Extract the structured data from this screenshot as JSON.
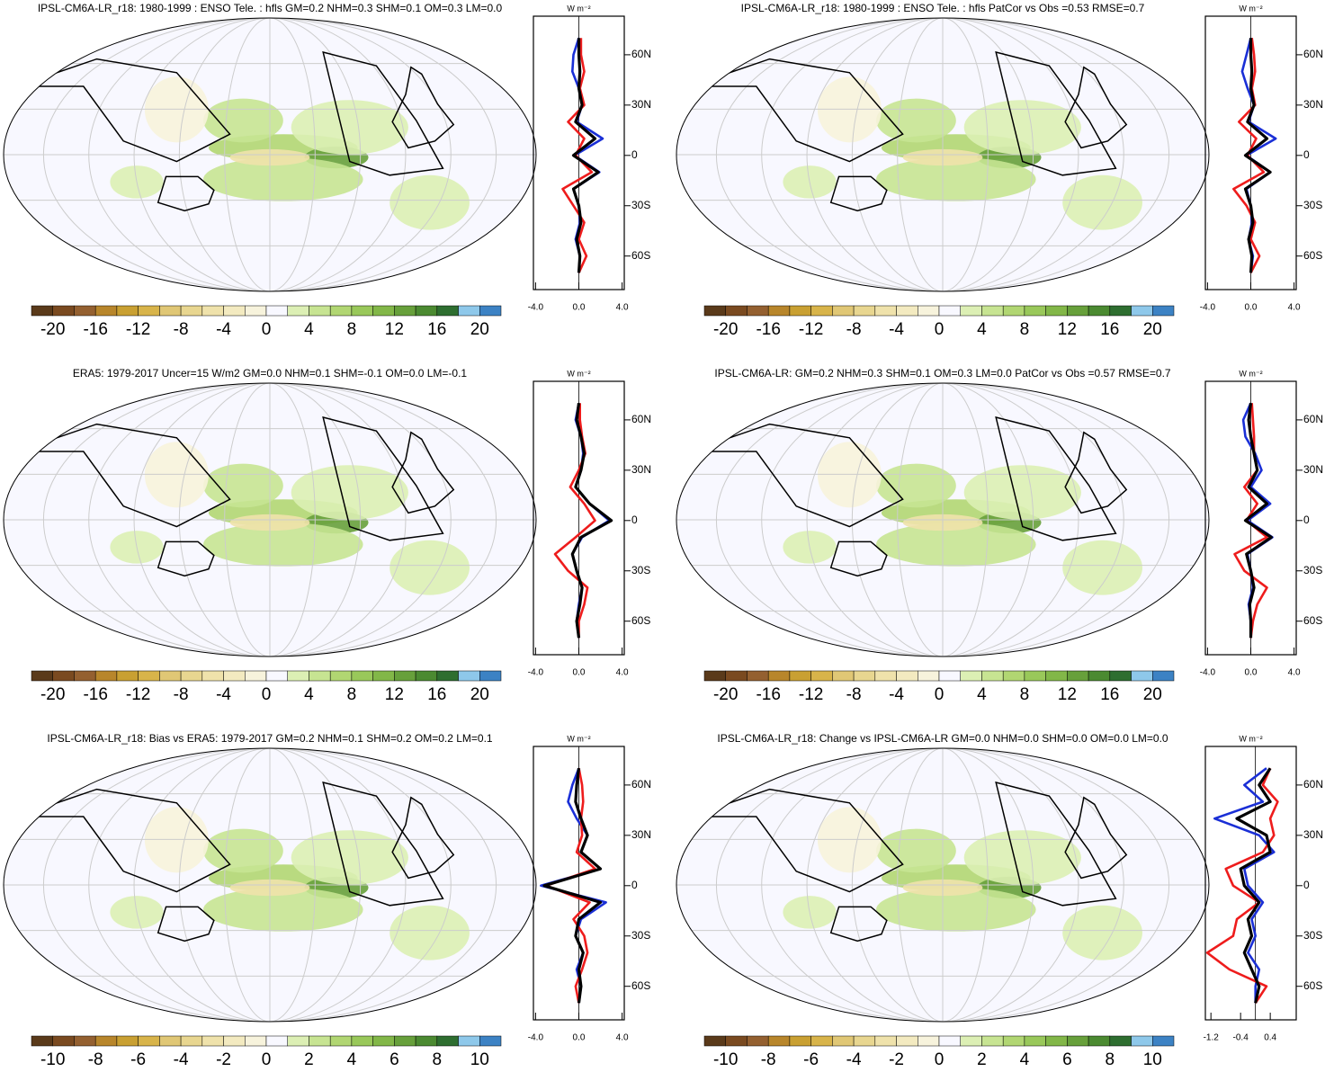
{
  "chart_data": [
    {
      "type": "map",
      "title": "IPSL-CM6A-LR_r18: 1980-1999 : ENSO Tele. : hfls GM=0.2 NHM=0.3 SHM=0.1 OM=0.3 LM=0.0",
      "colorbar": {
        "lim": [
          -22,
          22
        ],
        "ticks": [
          -20,
          -16,
          -12,
          -8,
          -4,
          0,
          4,
          8,
          12,
          16,
          20
        ],
        "colors": [
          "#5a3a1a",
          "#7a4a20",
          "#946030",
          "#b8862b",
          "#c9a032",
          "#d8b44a",
          "#e0c775",
          "#e8d690",
          "#efe2ab",
          "#f3eac0",
          "#f7f3dc",
          "#f8f8ff",
          "#dcefb4",
          "#c7e492",
          "#b1d672",
          "#99c85a",
          "#82b748",
          "#67a03b",
          "#4b8a31",
          "#2e6e30",
          "#8ec8ea",
          "#3c82c4"
        ]
      }
    },
    {
      "type": "line",
      "unit": "W m⁻²",
      "y": [
        70,
        60,
        50,
        40,
        30,
        20,
        10,
        0,
        -10,
        -20,
        -30,
        -40,
        -50,
        -60,
        -70
      ],
      "xlim": [
        -4.2,
        4.2
      ],
      "xticks": [
        {
          "value": -4,
          "label": "-4.0"
        },
        {
          "value": 0,
          "label": "0.0"
        },
        {
          "value": 4,
          "label": "4.0"
        }
      ],
      "ylim": [
        -80,
        83
      ],
      "yticks": [
        {
          "value": 60,
          "label": "60N"
        },
        {
          "value": 30,
          "label": "30N"
        },
        0,
        {
          "value": -30,
          "label": "30S"
        },
        {
          "value": -60,
          "label": "60S"
        }
      ],
      "series": [
        {
          "color": "#1a2fd6",
          "values": [
            0,
            -0.5,
            -0.6,
            0,
            0.3,
            -0.2,
            2.2,
            -0.4,
            1.9,
            -0.5,
            0,
            0.1,
            -0.3,
            0.1,
            0
          ]
        },
        {
          "color": "#ee1c1c",
          "values": [
            0.2,
            0.2,
            0.5,
            0.1,
            0.5,
            -1.0,
            0.5,
            -0.3,
            1.2,
            -1.5,
            -0.5,
            0.5,
            0,
            0.7,
            0
          ]
        },
        {
          "color": "#000000",
          "values": [
            0,
            0,
            0.1,
            0,
            0.3,
            -0.3,
            1.5,
            -0.5,
            1.8,
            -0.5,
            0,
            0.2,
            -0.2,
            0.1,
            0
          ]
        }
      ]
    },
    {
      "type": "map",
      "title": "IPSL-CM6A-LR_r18: 1980-1999 : ENSO Tele. : hfls PatCor vs Obs =0.53 RMSE=0.7",
      "colorbar": {
        "lim": [
          -22,
          22
        ],
        "ticks": [
          -20,
          -16,
          -12,
          -8,
          -4,
          0,
          4,
          8,
          12,
          16,
          20
        ],
        "colors": [
          "#5a3a1a",
          "#7a4a20",
          "#946030",
          "#b8862b",
          "#c9a032",
          "#d8b44a",
          "#e0c775",
          "#e8d690",
          "#efe2ab",
          "#f3eac0",
          "#f7f3dc",
          "#f8f8ff",
          "#dcefb4",
          "#c7e492",
          "#b1d672",
          "#99c85a",
          "#82b748",
          "#67a03b",
          "#4b8a31",
          "#2e6e30",
          "#8ec8ea",
          "#3c82c4"
        ]
      }
    },
    {
      "type": "line",
      "unit": "W m⁻²",
      "y": [
        70,
        60,
        50,
        40,
        30,
        20,
        10,
        0,
        -10,
        -20,
        -30,
        -40,
        -50,
        -60,
        -70
      ],
      "xlim": [
        -4.2,
        4.2
      ],
      "xticks": [
        {
          "value": -4,
          "label": "-4.0"
        },
        {
          "value": 0,
          "label": "0.0"
        },
        {
          "value": 4,
          "label": "4.0"
        }
      ],
      "ylim": [
        -80,
        83
      ],
      "yticks": [
        {
          "value": 60,
          "label": "60N"
        },
        {
          "value": 30,
          "label": "30N"
        },
        0,
        {
          "value": -30,
          "label": "30S"
        },
        {
          "value": -60,
          "label": "60S"
        }
      ],
      "series": [
        {
          "color": "#1a2fd6",
          "values": [
            0,
            -0.4,
            -0.8,
            -0.3,
            0.3,
            -0.2,
            2.3,
            -0.4,
            1.8,
            -0.4,
            0,
            0.1,
            -0.2,
            0.2,
            0
          ]
        },
        {
          "color": "#ee1c1c",
          "values": [
            0.1,
            0.3,
            0.4,
            0.1,
            0.4,
            -1.1,
            0.5,
            -0.3,
            1.2,
            -1.6,
            -0.4,
            0.4,
            0,
            0.8,
            0
          ]
        },
        {
          "color": "#000000",
          "values": [
            0,
            0,
            0.1,
            0,
            0.3,
            -0.3,
            1.5,
            -0.5,
            1.8,
            -0.5,
            0,
            0.2,
            -0.2,
            0.1,
            0
          ]
        }
      ]
    },
    {
      "type": "map",
      "title": "ERA5: 1979-2017 Uncer=15 W/m2 GM=0.0 NHM=0.1 SHM=-0.1 OM=0.0 LM=-0.1",
      "colorbar": {
        "lim": [
          -22,
          22
        ],
        "ticks": [
          -20,
          -16,
          -12,
          -8,
          -4,
          0,
          4,
          8,
          12,
          16,
          20
        ],
        "colors": [
          "#5a3a1a",
          "#7a4a20",
          "#946030",
          "#b8862b",
          "#c9a032",
          "#d8b44a",
          "#e0c775",
          "#e8d690",
          "#efe2ab",
          "#f3eac0",
          "#f7f3dc",
          "#f8f8ff",
          "#dcefb4",
          "#c7e492",
          "#b1d672",
          "#99c85a",
          "#82b748",
          "#67a03b",
          "#4b8a31",
          "#2e6e30",
          "#8ec8ea",
          "#3c82c4"
        ]
      }
    },
    {
      "type": "line",
      "unit": "W m⁻²",
      "y": [
        70,
        60,
        50,
        40,
        30,
        20,
        10,
        0,
        -10,
        -20,
        -30,
        -40,
        -50,
        -60,
        -70
      ],
      "xlim": [
        -4.2,
        4.2
      ],
      "xticks": [
        {
          "value": -4,
          "label": "-4.0"
        },
        {
          "value": 0,
          "label": "0.0"
        },
        {
          "value": 4,
          "label": "4.0"
        }
      ],
      "ylim": [
        -80,
        83
      ],
      "yticks": [
        {
          "value": 60,
          "label": "60N"
        },
        {
          "value": 30,
          "label": "30N"
        },
        0,
        {
          "value": -30,
          "label": "30S"
        },
        {
          "value": -60,
          "label": "60S"
        }
      ],
      "series": [
        {
          "color": "#1a2fd6",
          "values": [
            0,
            -0.3,
            0.2,
            0.4,
            0.2,
            -0.3,
            1.0,
            2.8,
            0.3,
            -0.6,
            -0.2,
            0.3,
            0,
            -0.2,
            0
          ]
        },
        {
          "color": "#ee1c1c",
          "values": [
            0.1,
            0.1,
            0.3,
            0.6,
            0,
            -0.8,
            0.5,
            1.5,
            -0.3,
            -2.2,
            -1.0,
            0.8,
            0.5,
            0,
            0
          ]
        },
        {
          "color": "#000000",
          "values": [
            0,
            -0.2,
            0.2,
            0.5,
            0.2,
            -0.3,
            1.0,
            3.0,
            0.2,
            -0.6,
            -0.2,
            0.3,
            0.1,
            -0.2,
            0
          ]
        }
      ]
    },
    {
      "type": "map",
      "title": "IPSL-CM6A-LR: GM=0.2 NHM=0.3 SHM=0.1 OM=0.3 LM=0.0 PatCor vs Obs =0.57 RMSE=0.7",
      "colorbar": {
        "lim": [
          -22,
          22
        ],
        "ticks": [
          -20,
          -16,
          -12,
          -8,
          -4,
          0,
          4,
          8,
          12,
          16,
          20
        ],
        "colors": [
          "#5a3a1a",
          "#7a4a20",
          "#946030",
          "#b8862b",
          "#c9a032",
          "#d8b44a",
          "#e0c775",
          "#e8d690",
          "#efe2ab",
          "#f3eac0",
          "#f7f3dc",
          "#f8f8ff",
          "#dcefb4",
          "#c7e492",
          "#b1d672",
          "#99c85a",
          "#82b748",
          "#67a03b",
          "#4b8a31",
          "#2e6e30",
          "#8ec8ea",
          "#3c82c4"
        ]
      }
    },
    {
      "type": "line",
      "unit": "W m⁻²",
      "y": [
        70,
        60,
        50,
        40,
        30,
        20,
        10,
        0,
        -10,
        -20,
        -30,
        -40,
        -50,
        -60,
        -70
      ],
      "xlim": [
        -4.2,
        4.2
      ],
      "xticks": [
        {
          "value": -4,
          "label": "-4.0"
        },
        {
          "value": 0,
          "label": "0.0"
        },
        {
          "value": 4,
          "label": "4.0"
        }
      ],
      "ylim": [
        -80,
        83
      ],
      "yticks": [
        {
          "value": 60,
          "label": "60N"
        },
        {
          "value": 30,
          "label": "30N"
        },
        0,
        {
          "value": -30,
          "label": "30S"
        },
        {
          "value": -60,
          "label": "60S"
        }
      ],
      "series": [
        {
          "color": "#1a2fd6",
          "values": [
            0,
            -0.7,
            -0.5,
            0.4,
            1.0,
            0,
            1.8,
            -0.3,
            2.0,
            -0.3,
            0,
            0.2,
            -0.2,
            0,
            0
          ]
        },
        {
          "color": "#ee1c1c",
          "values": [
            0.1,
            0.2,
            0.3,
            0.3,
            0.6,
            -0.6,
            0.6,
            -0.4,
            1.5,
            -1.5,
            -0.6,
            1.5,
            0.6,
            0.2,
            0
          ]
        },
        {
          "color": "#000000",
          "values": [
            0,
            -0.2,
            0,
            0.3,
            0.6,
            -0.2,
            1.5,
            -0.5,
            1.9,
            -0.4,
            0,
            0.3,
            -0.1,
            0,
            0
          ]
        }
      ]
    },
    {
      "type": "map",
      "title": "IPSL-CM6A-LR_r18: Bias vs ERA5: 1979-2017 GM=0.2 NHM=0.1 SHM=0.2 OM=0.2 LM=0.1",
      "colorbar": {
        "lim": [
          -11,
          11
        ],
        "ticks": [
          -10,
          -8,
          -6,
          -4,
          -2,
          0,
          2,
          4,
          6,
          8,
          10
        ],
        "colors": [
          "#5a3a1a",
          "#7a4a20",
          "#946030",
          "#b8862b",
          "#c9a032",
          "#d8b44a",
          "#e0c775",
          "#e8d690",
          "#efe2ab",
          "#f3eac0",
          "#f7f3dc",
          "#f8f8ff",
          "#dcefb4",
          "#c7e492",
          "#b1d672",
          "#99c85a",
          "#82b748",
          "#67a03b",
          "#4b8a31",
          "#2e6e30",
          "#8ec8ea",
          "#3c82c4"
        ]
      }
    },
    {
      "type": "line",
      "unit": "W m⁻²",
      "y": [
        70,
        60,
        50,
        40,
        30,
        20,
        10,
        0,
        -10,
        -20,
        -30,
        -40,
        -50,
        -60,
        -70
      ],
      "xlim": [
        -4.2,
        4.2
      ],
      "xticks": [
        {
          "value": -4,
          "label": "-4.0"
        },
        {
          "value": 0,
          "label": "0.0"
        },
        {
          "value": 4,
          "label": "4.0"
        }
      ],
      "ylim": [
        -80,
        83
      ],
      "yticks": [
        {
          "value": 60,
          "label": "60N"
        },
        {
          "value": 30,
          "label": "30N"
        },
        0,
        {
          "value": -30,
          "label": "30S"
        },
        {
          "value": -60,
          "label": "60S"
        }
      ],
      "series": [
        {
          "color": "#1a2fd6",
          "values": [
            0,
            -0.6,
            -1.0,
            -0.2,
            0.8,
            0.2,
            2.0,
            -3.5,
            2.5,
            0.2,
            -0.3,
            0.4,
            -0.2,
            0.2,
            0
          ]
        },
        {
          "color": "#ee1c1c",
          "values": [
            0,
            0.3,
            0.4,
            0.2,
            0.3,
            -0.2,
            1.5,
            -3.0,
            1.0,
            -0.5,
            0.5,
            0.8,
            0.3,
            -0.3,
            0
          ]
        },
        {
          "color": "#000000",
          "values": [
            0,
            -0.2,
            -0.3,
            0.2,
            0.8,
            0.2,
            2.0,
            -3.2,
            2.0,
            0,
            -0.3,
            0.4,
            0,
            0.2,
            0
          ]
        }
      ]
    },
    {
      "type": "map",
      "title": "IPSL-CM6A-LR_r18: Change vs IPSL-CM6A-LR GM=0.0 NHM=0.0 SHM=0.0 OM=0.0 LM=0.0",
      "colorbar": {
        "lim": [
          -11,
          11
        ],
        "ticks": [
          -10,
          -8,
          -6,
          -4,
          -2,
          0,
          2,
          4,
          6,
          8,
          10
        ],
        "colors": [
          "#5a3a1a",
          "#7a4a20",
          "#946030",
          "#b8862b",
          "#c9a032",
          "#d8b44a",
          "#e0c775",
          "#e8d690",
          "#efe2ab",
          "#f3eac0",
          "#f7f3dc",
          "#f8f8ff",
          "#dcefb4",
          "#c7e492",
          "#b1d672",
          "#99c85a",
          "#82b748",
          "#67a03b",
          "#4b8a31",
          "#2e6e30",
          "#8ec8ea",
          "#3c82c4"
        ]
      }
    },
    {
      "type": "line",
      "unit": "W m⁻²",
      "y": [
        70,
        60,
        50,
        40,
        30,
        20,
        10,
        0,
        -10,
        -20,
        -30,
        -40,
        -50,
        -60,
        -70
      ],
      "xlim": [
        -1.35,
        1.1
      ],
      "xticks": [
        -1.2,
        -0.4,
        0.4
      ],
      "ylim": [
        -80,
        83
      ],
      "yticks": [
        {
          "value": 60,
          "label": "60N"
        },
        {
          "value": 30,
          "label": "30N"
        },
        0,
        {
          "value": -30,
          "label": "30S"
        },
        {
          "value": -60,
          "label": "60S"
        }
      ],
      "series": [
        {
          "color": "#1a2fd6",
          "values": [
            0.3,
            -0.3,
            0.2,
            -1.1,
            0.1,
            0.5,
            -0.3,
            -0.2,
            0.2,
            -0.1,
            0,
            -0.2,
            0.1,
            0,
            0
          ]
        },
        {
          "color": "#ee1c1c",
          "values": [
            0.4,
            0.2,
            0.6,
            0.4,
            0.5,
            0.2,
            -0.8,
            -0.6,
            0.1,
            -0.5,
            -0.6,
            -1.3,
            -0.7,
            0.3,
            0
          ]
        },
        {
          "color": "#000000",
          "values": [
            0.4,
            0.1,
            0.4,
            -0.5,
            0.3,
            0.4,
            -0.4,
            -0.3,
            0.1,
            -0.2,
            -0.1,
            -0.3,
            -0.1,
            0.1,
            0
          ]
        }
      ]
    }
  ]
}
